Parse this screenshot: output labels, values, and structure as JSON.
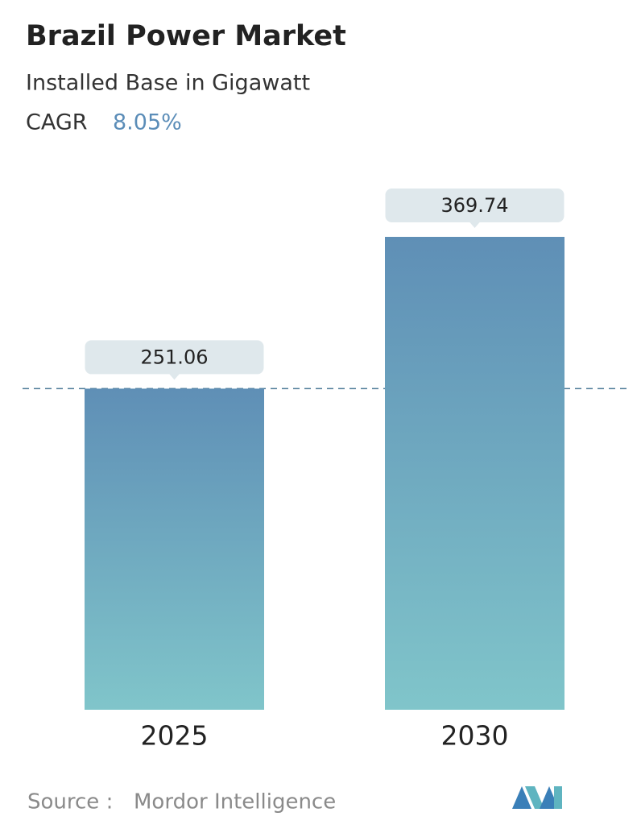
{
  "chart_data": {
    "type": "bar",
    "title": "Brazil Power Market",
    "subtitle": "Installed Base in Gigawatt",
    "cagr_label": "CAGR",
    "cagr_value": "8.05%",
    "categories": [
      "2025",
      "2030"
    ],
    "values": [
      251.06,
      369.74
    ],
    "color_top": "#5f8fb6",
    "color_bottom": "#80c5ca",
    "reference_line": true,
    "source_label": "Source :",
    "source": "Mordor Intelligence"
  }
}
